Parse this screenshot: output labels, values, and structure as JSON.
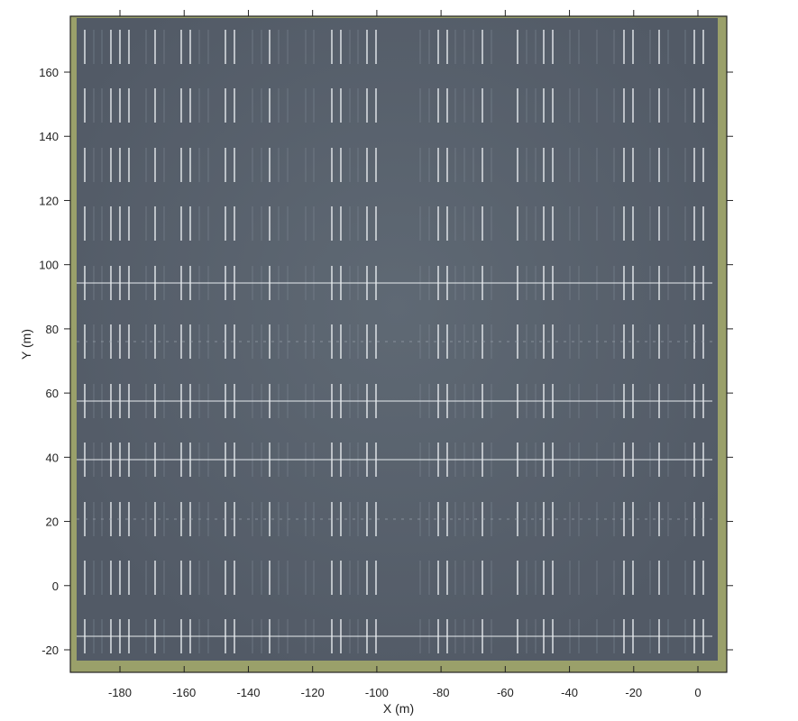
{
  "axes": {
    "xlabel": "X (m)",
    "ylabel": "Y (m)",
    "xticks": [
      "-180",
      "-160",
      "-140",
      "-120",
      "-100",
      "-80",
      "-60",
      "-40",
      "-20",
      "0"
    ],
    "yticks": [
      "-20",
      "0",
      "20",
      "40",
      "60",
      "80",
      "100",
      "120",
      "140",
      "160"
    ],
    "xlim": [
      -196,
      9
    ],
    "ylim": [
      -27,
      178
    ]
  },
  "colors": {
    "asphalt": "#5a6470",
    "grass": "#9aa06a",
    "marking": "#e8ecef"
  }
}
